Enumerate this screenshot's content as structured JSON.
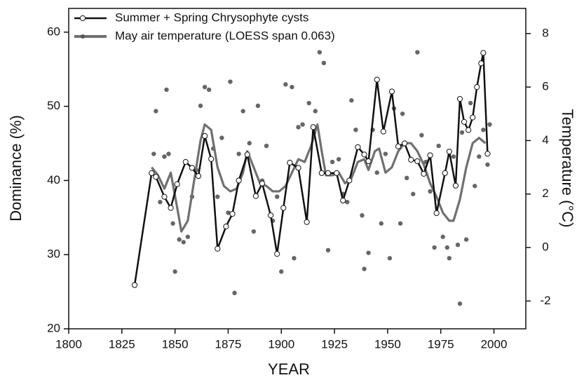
{
  "chart_data": {
    "type": "line",
    "xlabel": "YEAR",
    "ylabel": "Dominance (%)",
    "y2label": "Temperature (°C)",
    "xlim": [
      1800,
      2015
    ],
    "xticks": [
      1800,
      1825,
      1850,
      1875,
      1900,
      1925,
      1950,
      1975,
      2000
    ],
    "ylim": [
      20,
      63.2
    ],
    "yticks": [
      20,
      30,
      40,
      50,
      60
    ],
    "y2lim": [
      -3.04,
      8.94
    ],
    "y2ticks": [
      -2,
      0,
      2,
      4,
      6,
      8
    ],
    "grid": false,
    "legend": "upper left",
    "series": [
      {
        "name": "Summer + Spring Chrysophyte cysts",
        "color": "#111111",
        "marker": "circle",
        "x": [
          1831,
          1839,
          1841,
          1845,
          1848,
          1851,
          1855,
          1858,
          1861,
          1864,
          1867,
          1870,
          1874,
          1877,
          1880,
          1884,
          1888,
          1891,
          1895,
          1898,
          1901,
          1904,
          1908,
          1912,
          1915,
          1919,
          1922,
          1926,
          1929,
          1932,
          1936,
          1939,
          1941,
          1945,
          1948,
          1952,
          1955,
          1958,
          1961,
          1964,
          1967,
          1970,
          1973,
          1977,
          1979,
          1982,
          1984,
          1986,
          1988,
          1990,
          1992,
          1994,
          1995,
          1997
        ],
        "values": [
          25.9,
          41,
          40.5,
          37.8,
          36.3,
          39.5,
          42.5,
          41.7,
          40.6,
          46,
          42.9,
          30.8,
          33.8,
          35.5,
          40,
          43.5,
          37.9,
          39.6,
          35.3,
          30.1,
          36.3,
          42.4,
          41.7,
          34.4,
          47.2,
          41,
          41,
          41,
          37.3,
          40,
          44.5,
          43.5,
          42.6,
          53.6,
          46.6,
          52,
          44.6,
          45,
          42.8,
          42.6,
          40.9,
          43.4,
          35.6,
          41,
          43.9,
          39.3,
          51,
          47.9,
          46.8,
          48.5,
          52.6,
          55.8,
          57.2,
          43.6
        ]
      },
      {
        "name": "May air  temperature (LOESS span 0.063)",
        "color": "#707070",
        "axis": "y2",
        "x": [
          1839,
          1842,
          1845,
          1848,
          1851,
          1853,
          1856,
          1859,
          1862,
          1864,
          1867,
          1870,
          1873,
          1876,
          1879,
          1882,
          1884,
          1887,
          1890,
          1893,
          1896,
          1899,
          1902,
          1905,
          1908,
          1911,
          1914,
          1917,
          1919,
          1921,
          1924,
          1927,
          1930,
          1933,
          1936,
          1939,
          1941,
          1944,
          1946,
          1949,
          1952,
          1955,
          1958,
          1961,
          1964,
          1967,
          1970,
          1973,
          1976,
          1979,
          1981,
          1984,
          1987,
          1990,
          1993,
          1996
        ],
        "values": [
          3.0,
          2.7,
          2.2,
          2.8,
          1.5,
          0.6,
          1.0,
          2.5,
          4.0,
          4.6,
          4.4,
          3.0,
          2.3,
          2.1,
          2.2,
          2.8,
          3.6,
          3.0,
          2.4,
          2.3,
          2.1,
          2.1,
          2.3,
          2.8,
          3.3,
          3.2,
          3.8,
          4.6,
          3.6,
          2.7,
          2.7,
          2.8,
          2.4,
          2.6,
          3.2,
          3.3,
          2.9,
          3.6,
          3.7,
          2.8,
          3.0,
          3.6,
          3.9,
          3.9,
          3.6,
          3.1,
          2.4,
          1.9,
          1.3,
          1.0,
          1.0,
          1.8,
          3.0,
          3.9,
          4.1,
          3.9
        ]
      },
      {
        "type": "scatter",
        "color": "#666666",
        "axis": "y2",
        "x": [
          1840,
          1841,
          1843,
          1845,
          1846,
          1847,
          1849,
          1850,
          1852,
          1854,
          1856,
          1858,
          1860,
          1862,
          1864,
          1866,
          1868,
          1870,
          1872,
          1875,
          1876,
          1878,
          1880,
          1882,
          1885,
          1887,
          1889,
          1891,
          1893,
          1896,
          1898,
          1900,
          1902,
          1905,
          1906,
          1908,
          1910,
          1913,
          1916,
          1918,
          1920,
          1922,
          1924,
          1927,
          1929,
          1931,
          1933,
          1935,
          1938,
          1939,
          1941,
          1943,
          1945,
          1947,
          1949,
          1951,
          1953,
          1956,
          1957,
          1959,
          1962,
          1964,
          1966,
          1968,
          1970,
          1972,
          1974,
          1976,
          1978,
          1979,
          1981,
          1983,
          1984,
          1985,
          1987,
          1989,
          1991,
          1993,
          1995,
          1997,
          1998
        ],
        "values": [
          3.5,
          5.1,
          1.7,
          3.4,
          5.9,
          3.5,
          0.9,
          -0.9,
          0.3,
          0.2,
          0.4,
          1.9,
          2.9,
          5.3,
          6.0,
          5.9,
          3.7,
          1.9,
          4.1,
          1.3,
          6.2,
          -1.7,
          3.5,
          5.1,
          3.9,
          0.6,
          5.3,
          2.5,
          3.8,
          1.0,
          1.9,
          -0.9,
          6.1,
          6.0,
          -0.4,
          4.5,
          4.6,
          5.4,
          5.1,
          7.3,
          6.9,
          -0.1,
          3.2,
          3.3,
          2.0,
          1.7,
          5.5,
          4.4,
          1.2,
          -0.8,
          -0.2,
          4.4,
          2.8,
          0.9,
          3.5,
          -0.4,
          5.2,
          0.9,
          5.0,
          2.6,
          2.0,
          7.3,
          4.2,
          3.2,
          2.1,
          0.0,
          3.8,
          0.4,
          0.0,
          -0.4,
          3.4,
          0.1,
          -2.1,
          4.3,
          0.3,
          5.4,
          2.3,
          3.4,
          4.4,
          3.1,
          4.6
        ]
      }
    ]
  }
}
